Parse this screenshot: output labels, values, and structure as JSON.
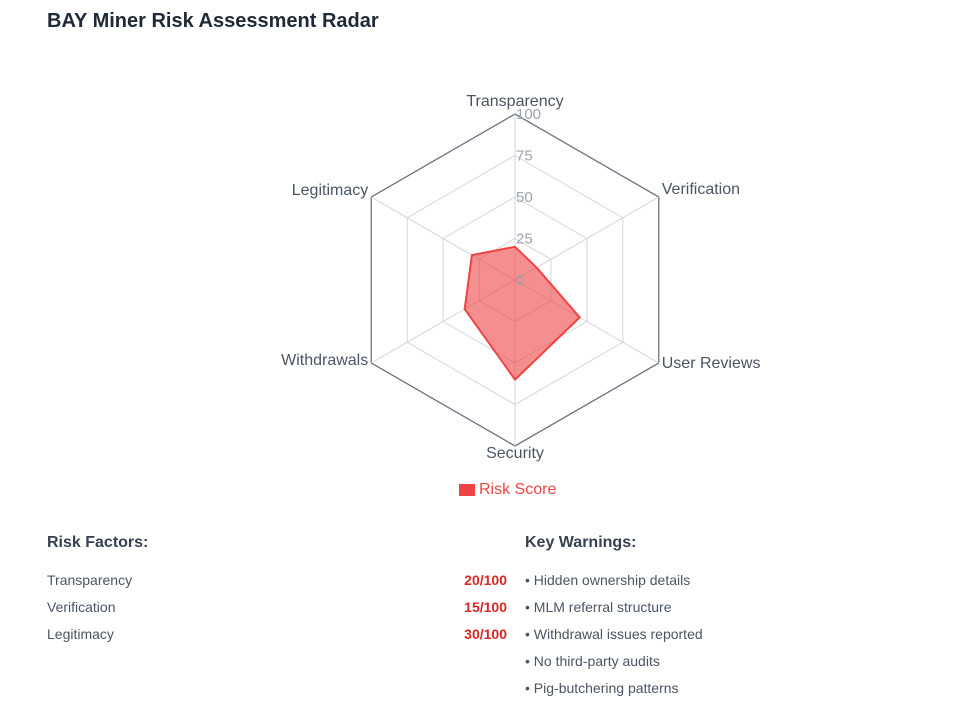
{
  "title": "BAY Miner Risk Assessment Radar",
  "chart_data": {
    "type": "radar",
    "title": "BAY Miner Risk Assessment Radar",
    "categories": [
      "Transparency",
      "Verification",
      "User Reviews",
      "Security",
      "Withdrawals",
      "Legitimacy"
    ],
    "series": [
      {
        "name": "Risk Score",
        "values": [
          20,
          15,
          45,
          60,
          35,
          30
        ],
        "color": "#ef4444"
      }
    ],
    "rlim": [
      0,
      100
    ],
    "ticks": [
      "0",
      "25",
      "50",
      "75",
      "100"
    ],
    "legend_position": "bottom"
  },
  "legend": {
    "label": "Risk Score",
    "color": "#ef4444"
  },
  "risk_factors": {
    "heading": "Risk Factors:",
    "items": [
      {
        "label": "Transparency",
        "value": "20/100"
      },
      {
        "label": "Verification",
        "value": "15/100"
      },
      {
        "label": "Legitimacy",
        "value": "30/100"
      }
    ]
  },
  "key_warnings": {
    "heading": "Key Warnings:",
    "items": [
      "• Hidden ownership details",
      "• MLM referral structure",
      "• Withdrawal issues reported",
      "• No third-party audits",
      "• Pig-butchering patterns"
    ]
  }
}
